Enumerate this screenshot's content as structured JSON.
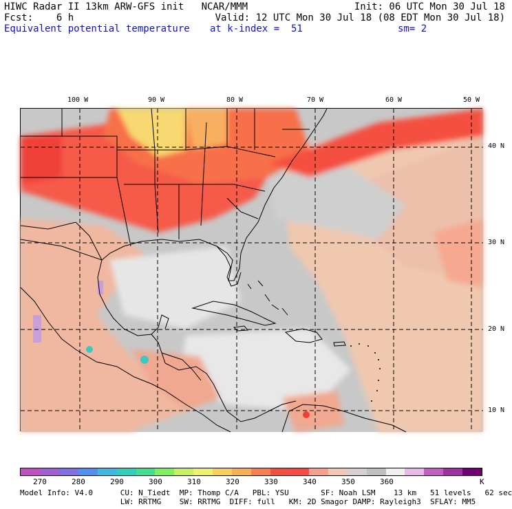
{
  "header": {
    "line1_left": "HIWC Radar II 13km ARW-GFS init   NCAR/MMM",
    "line1_right": "Init: 06 UTC Mon 30 Jul 18",
    "line2_left": "Fcst:    6 h",
    "line2_right": "Valid: 12 UTC Mon 30 Jul 18 (08 EDT Mon 30 Jul 18)",
    "line3_left": "Equivalent potential temperature",
    "line3_mid": "at k-index =  51",
    "line3_right": "sm= 2"
  },
  "map": {
    "lon_labels": [
      "100 W",
      "90 W",
      "80 W",
      "70 W",
      "60 W",
      "50 W"
    ],
    "lat_labels": [
      "40 N",
      "30 N",
      "20 N",
      "10 N"
    ]
  },
  "colorbar": {
    "colors": [
      "#c050c0",
      "#a060d0",
      "#8070e0",
      "#5090f0",
      "#40b8e0",
      "#30d0c0",
      "#40e090",
      "#80f060",
      "#c8f060",
      "#f0f070",
      "#f8d060",
      "#f8b050",
      "#f88050",
      "#f05040",
      "#f84848",
      "#f8a090",
      "#f0c8b8",
      "#d8d0d0",
      "#c0c0c0",
      "#f0f0f0",
      "#e8b8e8",
      "#c060c0",
      "#a030a0",
      "#700070"
    ],
    "labels": [
      "270",
      "280",
      "290",
      "300",
      "310",
      "320",
      "330",
      "340",
      "350",
      "360",
      "K"
    ]
  },
  "footer": {
    "line1": "Model Info: V4.0      CU: N_Tiedt  MP: Thomp C/A   PBL: YSU       SF: Noah LSM    13 km   51 levels   62 sec",
    "line2": "                      LW: RRTMG    SW: RRTMG  DIFF: full   KM: 2D Smagor DAMP: Rayleigh3  SFLAY: MM5"
  }
}
